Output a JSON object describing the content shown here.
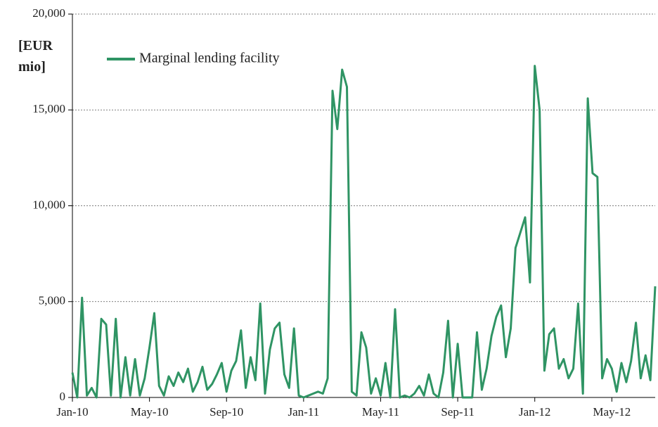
{
  "chart_data": {
    "type": "line",
    "ylabel": "[EUR mio]",
    "categories": [
      "Jan-10",
      null,
      null,
      null,
      null,
      null,
      null,
      null,
      null,
      null,
      null,
      null,
      null,
      null,
      null,
      null,
      "May-10",
      null,
      null,
      null,
      null,
      null,
      null,
      null,
      null,
      null,
      null,
      null,
      null,
      null,
      null,
      null,
      "Sep-10",
      null,
      null,
      null,
      null,
      null,
      null,
      null,
      null,
      null,
      null,
      null,
      null,
      null,
      null,
      null,
      "Jan-11",
      null,
      null,
      null,
      null,
      null,
      null,
      null,
      null,
      null,
      null,
      null,
      null,
      null,
      null,
      null,
      "May-11",
      null,
      null,
      null,
      null,
      null,
      null,
      null,
      null,
      null,
      null,
      null,
      null,
      null,
      null,
      null,
      "Sep-11",
      null,
      null,
      null,
      null,
      null,
      null,
      null,
      null,
      null,
      null,
      null,
      null,
      null,
      null,
      null,
      "Jan-12",
      null,
      null,
      null,
      null,
      null,
      null,
      null,
      null,
      null,
      null,
      null,
      null,
      null,
      null,
      null,
      "May-12",
      null,
      null,
      null,
      null,
      null,
      null,
      null,
      null,
      null
    ],
    "series": [
      {
        "name": "Marginal lending facility",
        "color": "#2f9464",
        "values": [
          1300,
          0,
          5200,
          100,
          500,
          0,
          4100,
          3800,
          100,
          4100,
          0,
          2100,
          100,
          2000,
          100,
          1000,
          2600,
          4400,
          600,
          100,
          1100,
          600,
          1300,
          800,
          1500,
          300,
          800,
          1600,
          400,
          700,
          1200,
          1800,
          300,
          1400,
          1900,
          3500,
          500,
          2100,
          900,
          4900,
          200,
          2500,
          3600,
          3900,
          1200,
          500,
          3600,
          100,
          0,
          100,
          200,
          300,
          200,
          1000,
          16000,
          14000,
          17100,
          16200,
          300,
          100,
          3400,
          2600,
          200,
          1000,
          100,
          1800,
          0,
          4600,
          0,
          100,
          0,
          200,
          600,
          100,
          1200,
          200,
          0,
          1300,
          4000,
          0,
          2800,
          0,
          0,
          0,
          3400,
          400,
          1500,
          3200,
          4200,
          4800,
          2100,
          3600,
          7800,
          8600,
          9400,
          6000,
          17300,
          15000,
          1400,
          3300,
          3600,
          1500,
          2000,
          1000,
          1500,
          4900,
          200,
          15600,
          11700,
          11500,
          1000,
          2000,
          1500,
          300,
          1800,
          800,
          1900,
          3900,
          1000,
          2200,
          900,
          5800
        ]
      }
    ],
    "ylim": [
      0,
      20000
    ],
    "yticks": [
      0,
      {
        "value": 5000,
        "label": "5,000"
      },
      {
        "value": 10000,
        "label": "10,000"
      },
      {
        "value": 15000,
        "label": "15,000"
      },
      {
        "value": 20000,
        "label": "20,000"
      }
    ],
    "grid": true
  }
}
